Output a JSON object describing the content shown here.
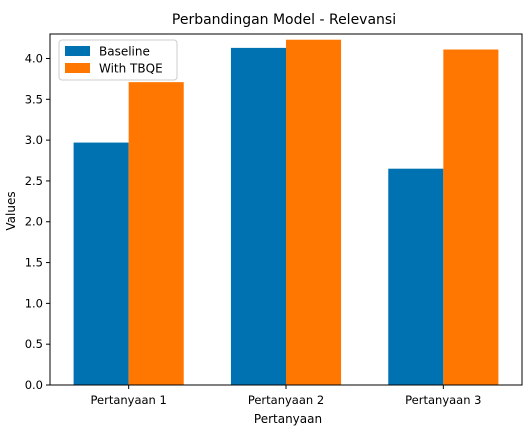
{
  "chart_data": {
    "type": "bar",
    "title": "Perbandingan Model - Relevansi",
    "xlabel": "Pertanyaan",
    "ylabel": "Values",
    "categories": [
      "Pertanyaan 1",
      "Pertanyaan 2",
      "Pertanyaan 3"
    ],
    "series": [
      {
        "name": "Baseline",
        "color": "#0072B2",
        "values": [
          2.97,
          4.13,
          2.65
        ]
      },
      {
        "name": "With TBQE",
        "color": "#FF7700",
        "values": [
          3.71,
          4.23,
          4.11
        ]
      }
    ],
    "ylim": [
      0,
      4.3
    ],
    "yticks": [
      0.0,
      0.5,
      1.0,
      1.5,
      2.0,
      2.5,
      3.0,
      3.5,
      4.0
    ],
    "ytick_labels": [
      "0.0",
      "0.5",
      "1.0",
      "1.5",
      "2.0",
      "2.5",
      "3.0",
      "3.5",
      "4.0"
    ],
    "grid": false,
    "legend_position": "top-left"
  }
}
